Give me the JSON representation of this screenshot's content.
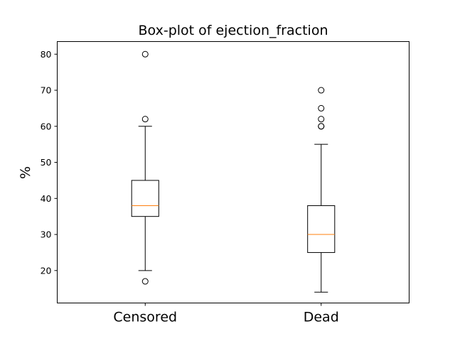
{
  "chart_data": {
    "type": "box",
    "title": "Box-plot of ejection_fraction",
    "ylabel": "%",
    "xlabel": "",
    "ylim": [
      11,
      83.5
    ],
    "yticks": [
      20,
      30,
      40,
      50,
      60,
      70,
      80
    ],
    "grid": false,
    "categories": [
      "Censored",
      "Dead"
    ],
    "boxes": [
      {
        "category": "Censored",
        "whisker_low": 20,
        "q1": 35,
        "median": 38,
        "q3": 45,
        "whisker_high": 60,
        "outliers": [
          80,
          62,
          17
        ]
      },
      {
        "category": "Dead",
        "whisker_low": 14,
        "q1": 25,
        "median": 30,
        "q3": 38,
        "whisker_high": 55,
        "outliers": [
          70,
          65,
          62,
          60,
          60
        ]
      }
    ],
    "colors": {
      "box": "#000000",
      "median": "#ff7f0e",
      "outlier": "#000000"
    }
  }
}
